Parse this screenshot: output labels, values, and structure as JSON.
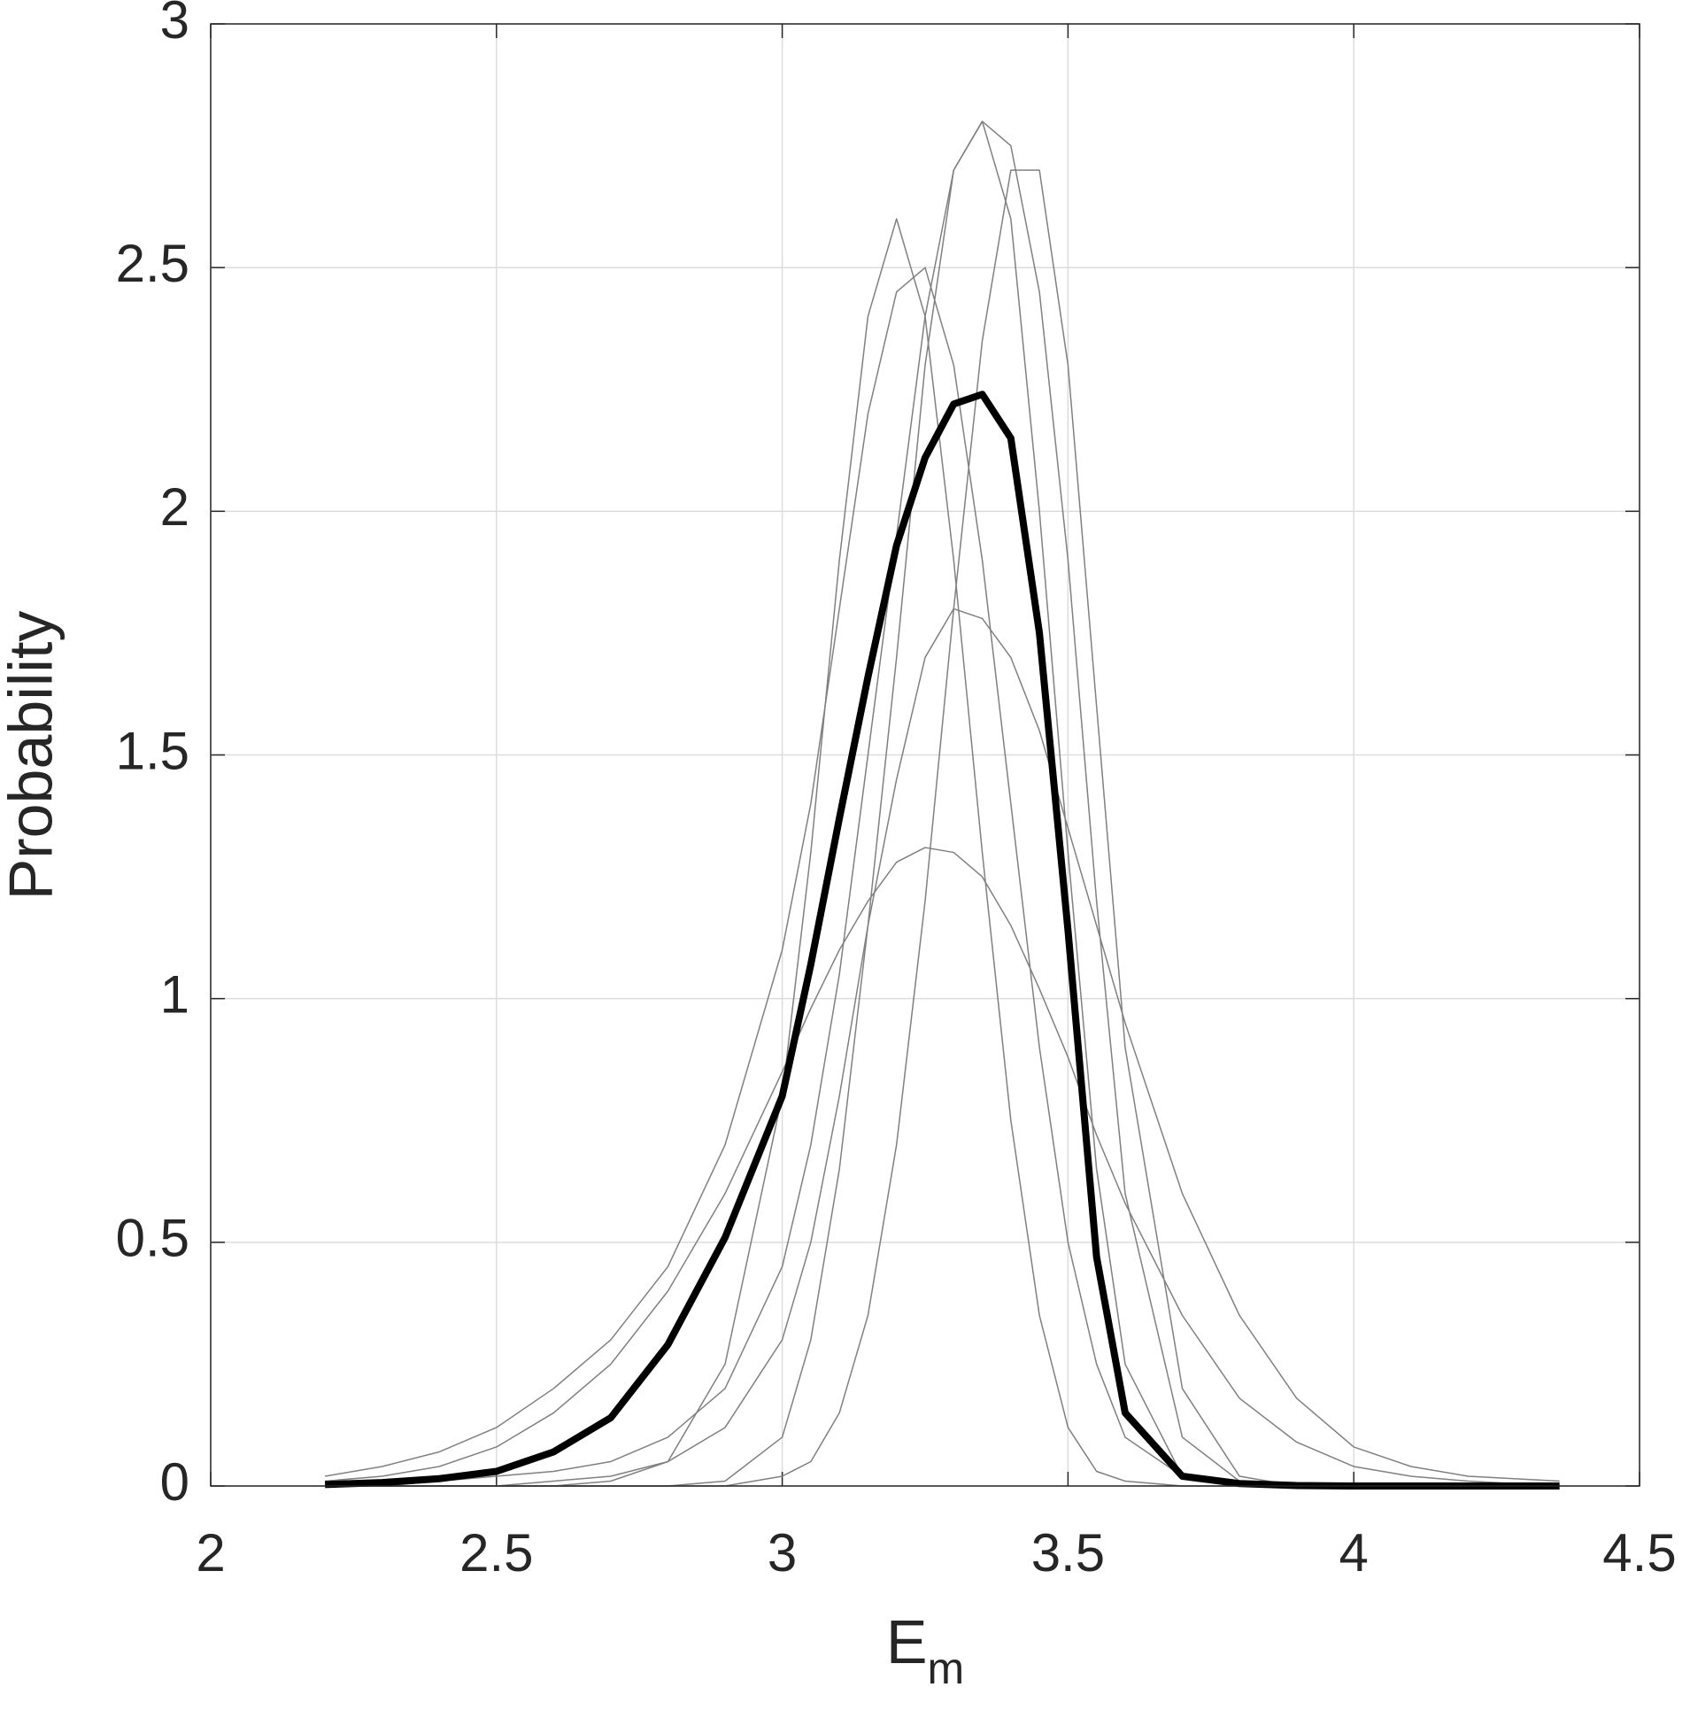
{
  "chart_data": {
    "type": "line",
    "xlabel": {
      "base": "E",
      "subscript": "m"
    },
    "ylabel": "Probability",
    "x": [
      2.2,
      2.3,
      2.4,
      2.5,
      2.6,
      2.7,
      2.8,
      2.9,
      3.0,
      3.05,
      3.1,
      3.15,
      3.2,
      3.25,
      3.3,
      3.35,
      3.4,
      3.45,
      3.5,
      3.55,
      3.6,
      3.7,
      3.8,
      3.9,
      4.0,
      4.1,
      4.2,
      4.36
    ],
    "series": [
      {
        "color": "#808080",
        "width": 1.5,
        "values": [
          0,
          0,
          0,
          0,
          0,
          0,
          0,
          0.01,
          0.1,
          0.3,
          0.65,
          1.15,
          1.7,
          2.3,
          2.7,
          2.8,
          2.6,
          2.0,
          1.3,
          0.65,
          0.25,
          0.02,
          0,
          0,
          0,
          0,
          0,
          0
        ]
      },
      {
        "color": "#808080",
        "width": 1.5,
        "values": [
          0.01,
          0.02,
          0.04,
          0.08,
          0.15,
          0.25,
          0.4,
          0.6,
          0.85,
          0.98,
          1.1,
          1.2,
          1.28,
          1.31,
          1.3,
          1.25,
          1.15,
          1.02,
          0.88,
          0.72,
          0.58,
          0.35,
          0.18,
          0.09,
          0.04,
          0.02,
          0.01,
          0
        ]
      },
      {
        "color": "#808080",
        "width": 1.5,
        "values": [
          0,
          0,
          0,
          0,
          0,
          0.01,
          0.05,
          0.25,
          0.8,
          1.3,
          1.9,
          2.4,
          2.6,
          2.4,
          1.9,
          1.3,
          0.75,
          0.35,
          0.12,
          0.03,
          0.01,
          0,
          0,
          0,
          0,
          0,
          0,
          0
        ]
      },
      {
        "color": "#808080",
        "width": 1.5,
        "values": [
          0,
          0,
          0,
          0,
          0,
          0,
          0,
          0,
          0.02,
          0.05,
          0.15,
          0.35,
          0.7,
          1.2,
          1.8,
          2.35,
          2.7,
          2.7,
          2.3,
          1.6,
          0.9,
          0.2,
          0.02,
          0,
          0,
          0,
          0,
          0
        ]
      },
      {
        "color": "#808080",
        "width": 1.5,
        "values": [
          0.02,
          0.04,
          0.07,
          0.12,
          0.2,
          0.3,
          0.45,
          0.7,
          1.1,
          1.4,
          1.8,
          2.2,
          2.45,
          2.5,
          2.3,
          1.9,
          1.4,
          0.9,
          0.5,
          0.25,
          0.1,
          0.02,
          0.01,
          0,
          0,
          0,
          0,
          0
        ]
      },
      {
        "color": "#808080",
        "width": 1.5,
        "values": [
          0,
          0,
          0,
          0,
          0.01,
          0.02,
          0.05,
          0.12,
          0.3,
          0.5,
          0.8,
          1.15,
          1.45,
          1.7,
          1.8,
          1.78,
          1.7,
          1.55,
          1.35,
          1.15,
          0.95,
          0.6,
          0.35,
          0.18,
          0.08,
          0.04,
          0.02,
          0.01
        ]
      },
      {
        "color": "#808080",
        "width": 1.5,
        "values": [
          0,
          0,
          0.01,
          0.02,
          0.03,
          0.05,
          0.1,
          0.2,
          0.45,
          0.7,
          1.05,
          1.5,
          1.95,
          2.4,
          2.7,
          2.8,
          2.75,
          2.45,
          1.9,
          1.2,
          0.6,
          0.1,
          0.01,
          0,
          0,
          0,
          0,
          0
        ]
      },
      {
        "color": "#000000",
        "width": 8,
        "values": [
          0.003,
          0.007,
          0.015,
          0.03,
          0.07,
          0.14,
          0.29,
          0.51,
          0.8,
          1.07,
          1.37,
          1.66,
          1.93,
          2.11,
          2.22,
          2.24,
          2.15,
          1.75,
          1.14,
          0.47,
          0.15,
          0.02,
          0.005,
          0.001,
          0,
          0,
          0,
          0
        ]
      }
    ],
    "xlim": [
      2,
      4.5
    ],
    "xticks": [
      2,
      2.5,
      3,
      3.5,
      4,
      4.5
    ],
    "ylim": [
      0,
      3
    ],
    "yticks": [
      0,
      0.5,
      1,
      1.5,
      2,
      2.5,
      3
    ],
    "grid": true
  }
}
